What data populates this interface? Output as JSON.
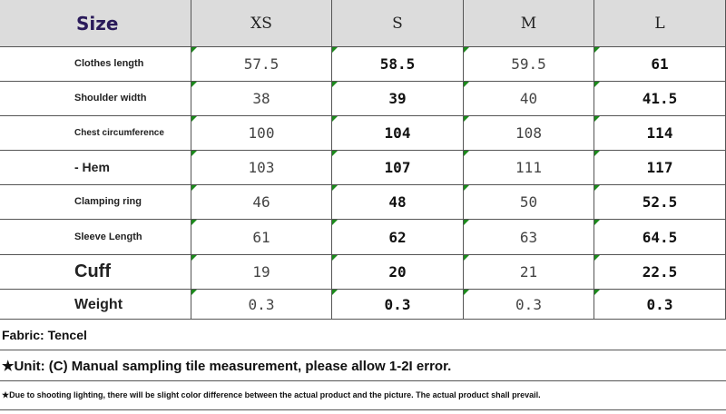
{
  "table": {
    "header": [
      "Size",
      "XS",
      "S",
      "M",
      "L"
    ],
    "rows": [
      [
        "Clothes length",
        "57.5",
        "58.5",
        "59.5",
        "61"
      ],
      [
        "Shoulder width",
        "38",
        "39",
        "40",
        "41.5"
      ],
      [
        "Chest circumference",
        "100",
        "104",
        "108",
        "114"
      ],
      [
        "- Hem",
        "103",
        "107",
        "111",
        "117"
      ],
      [
        "Clamping ring",
        "46",
        "48",
        "50",
        "52.5"
      ],
      [
        "Sleeve Length",
        "61",
        "62",
        "63",
        "64.5"
      ],
      [
        "Cuff",
        "19",
        "20",
        "21",
        "22.5"
      ],
      [
        "Weight",
        "0.3",
        "0.3",
        "0.3",
        "0.3"
      ]
    ]
  },
  "notes": [
    "Fabric: Tencel",
    "★Unit: (C) Manual sampling tile measurement, please allow 1-2I error.",
    "★Due to shooting lighting, there will be slight color difference between the actual product and the picture. The actual product shall prevail."
  ]
}
